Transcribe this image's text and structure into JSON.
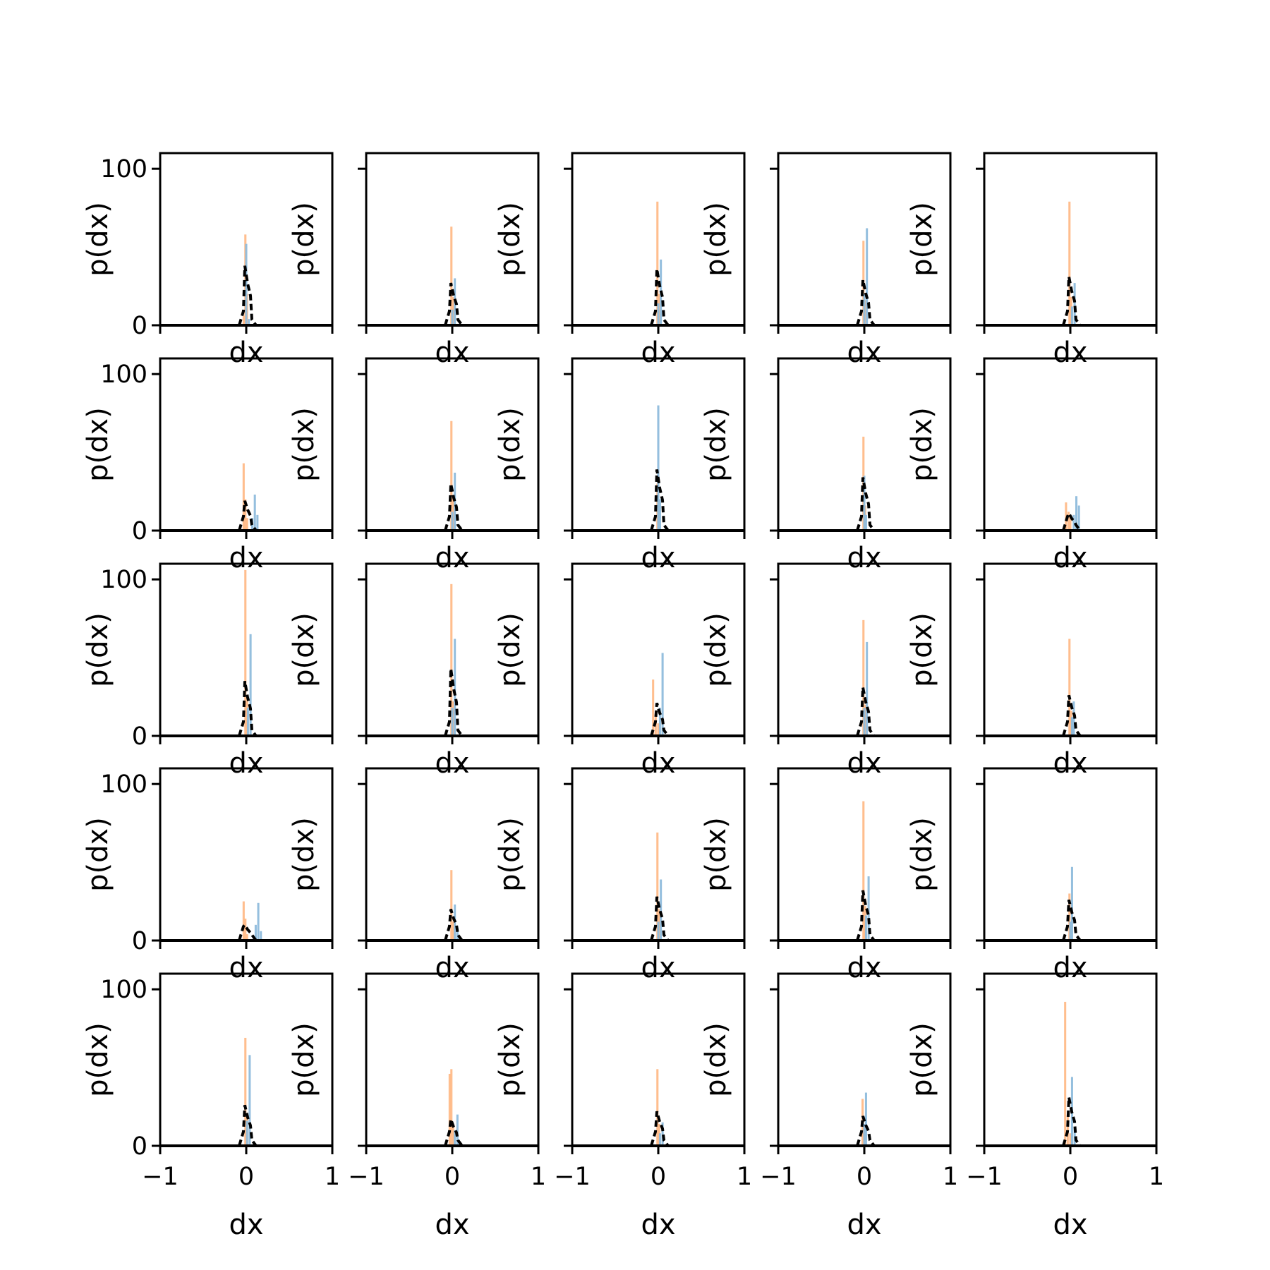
{
  "chart_data": {
    "type": "histogram-grid",
    "rows": 5,
    "cols": 5,
    "xlabel": "dx",
    "ylabel": "p(dx)",
    "xlim": [
      -1,
      1
    ],
    "ylim": [
      0,
      110
    ],
    "xticks": [
      -1,
      0,
      1
    ],
    "xtick_labels": [
      "−1",
      "0",
      "1"
    ],
    "yticks": [
      0,
      100
    ],
    "ytick_labels": [
      "0",
      "100"
    ],
    "colors": {
      "orange": "#ffbb88",
      "blue": "#8fbcdc",
      "line": "#000000"
    },
    "bin_width": 0.025,
    "panels": [
      {
        "row": 0,
        "col": 0,
        "orange": [
          [
            -0.01,
            58
          ],
          [
            0.01,
            20
          ],
          [
            -0.03,
            6
          ]
        ],
        "blue": [
          [
            0.0,
            52
          ],
          [
            0.03,
            4
          ]
        ],
        "peak": 38
      },
      {
        "row": 0,
        "col": 1,
        "orange": [
          [
            -0.01,
            63
          ],
          [
            0.01,
            18
          ]
        ],
        "blue": [
          [
            0.03,
            30
          ],
          [
            0.0,
            10
          ]
        ],
        "peak": 27
      },
      {
        "row": 0,
        "col": 2,
        "orange": [
          [
            -0.01,
            79
          ],
          [
            0.01,
            20
          ]
        ],
        "blue": [
          [
            0.03,
            42
          ],
          [
            0.0,
            14
          ]
        ],
        "peak": 36
      },
      {
        "row": 0,
        "col": 3,
        "orange": [
          [
            -0.01,
            54
          ],
          [
            0.01,
            16
          ]
        ],
        "blue": [
          [
            0.03,
            62
          ],
          [
            0.0,
            20
          ]
        ],
        "peak": 29
      },
      {
        "row": 0,
        "col": 4,
        "orange": [
          [
            -0.01,
            79
          ],
          [
            0.01,
            18
          ]
        ],
        "blue": [
          [
            0.05,
            27
          ],
          [
            0.02,
            12
          ]
        ],
        "peak": 31
      },
      {
        "row": 1,
        "col": 0,
        "orange": [
          [
            -0.03,
            43
          ],
          [
            -0.01,
            20
          ],
          [
            0.01,
            8
          ]
        ],
        "blue": [
          [
            0.1,
            23
          ],
          [
            0.13,
            10
          ],
          [
            0.07,
            8
          ]
        ],
        "peak": 19
      },
      {
        "row": 1,
        "col": 1,
        "orange": [
          [
            -0.01,
            70
          ],
          [
            0.01,
            22
          ]
        ],
        "blue": [
          [
            0.03,
            37
          ],
          [
            0.0,
            12
          ]
        ],
        "peak": 30
      },
      {
        "row": 1,
        "col": 2,
        "orange": [
          [
            -0.01,
            30
          ],
          [
            0.01,
            12
          ]
        ],
        "blue": [
          [
            0.0,
            80
          ],
          [
            0.02,
            20
          ]
        ],
        "peak": 39
      },
      {
        "row": 1,
        "col": 3,
        "orange": [
          [
            -0.01,
            60
          ],
          [
            0.01,
            16
          ]
        ],
        "blue": [
          [
            0.0,
            35
          ],
          [
            0.02,
            10
          ]
        ],
        "peak": 34
      },
      {
        "row": 1,
        "col": 4,
        "orange": [
          [
            -0.05,
            18
          ],
          [
            -0.02,
            12
          ],
          [
            0.0,
            8
          ]
        ],
        "blue": [
          [
            0.07,
            22
          ],
          [
            0.1,
            16
          ],
          [
            0.04,
            10
          ]
        ],
        "peak": 11
      },
      {
        "row": 2,
        "col": 0,
        "orange": [
          [
            -0.01,
            106
          ],
          [
            0.01,
            26
          ]
        ],
        "blue": [
          [
            0.05,
            65
          ],
          [
            0.02,
            18
          ]
        ],
        "peak": 35
      },
      {
        "row": 2,
        "col": 1,
        "orange": [
          [
            -0.01,
            97
          ],
          [
            0.01,
            22
          ]
        ],
        "blue": [
          [
            0.03,
            62
          ],
          [
            0.0,
            18
          ]
        ],
        "peak": 43
      },
      {
        "row": 2,
        "col": 2,
        "orange": [
          [
            -0.06,
            36
          ],
          [
            -0.03,
            14
          ],
          [
            0.0,
            8
          ]
        ],
        "blue": [
          [
            0.05,
            53
          ],
          [
            0.02,
            18
          ]
        ],
        "peak": 21
      },
      {
        "row": 2,
        "col": 3,
        "orange": [
          [
            -0.01,
            74
          ],
          [
            0.01,
            20
          ]
        ],
        "blue": [
          [
            0.03,
            60
          ],
          [
            0.0,
            18
          ]
        ],
        "peak": 31
      },
      {
        "row": 2,
        "col": 4,
        "orange": [
          [
            -0.01,
            62
          ],
          [
            0.01,
            16
          ]
        ],
        "blue": [
          [
            0.04,
            22
          ],
          [
            0.02,
            12
          ]
        ],
        "peak": 26
      },
      {
        "row": 3,
        "col": 0,
        "orange": [
          [
            -0.03,
            25
          ],
          [
            -0.01,
            14
          ],
          [
            0.01,
            4
          ]
        ],
        "blue": [
          [
            0.14,
            24
          ],
          [
            0.11,
            10
          ],
          [
            0.17,
            6
          ]
        ],
        "peak": 10
      },
      {
        "row": 3,
        "col": 1,
        "orange": [
          [
            -0.01,
            45
          ],
          [
            0.01,
            12
          ]
        ],
        "blue": [
          [
            0.03,
            23
          ],
          [
            0.06,
            8
          ]
        ],
        "peak": 20
      },
      {
        "row": 3,
        "col": 2,
        "orange": [
          [
            -0.01,
            69
          ],
          [
            0.01,
            20
          ]
        ],
        "blue": [
          [
            0.03,
            39
          ],
          [
            0.0,
            12
          ]
        ],
        "peak": 28
      },
      {
        "row": 3,
        "col": 3,
        "orange": [
          [
            -0.01,
            89
          ],
          [
            0.01,
            22
          ]
        ],
        "blue": [
          [
            0.05,
            41
          ],
          [
            0.02,
            16
          ]
        ],
        "peak": 32
      },
      {
        "row": 3,
        "col": 4,
        "orange": [
          [
            -0.01,
            30
          ],
          [
            0.01,
            10
          ]
        ],
        "blue": [
          [
            0.02,
            47
          ],
          [
            0.0,
            12
          ]
        ],
        "peak": 26
      },
      {
        "row": 4,
        "col": 0,
        "orange": [
          [
            -0.01,
            69
          ],
          [
            0.01,
            20
          ]
        ],
        "blue": [
          [
            0.04,
            58
          ],
          [
            0.01,
            16
          ]
        ],
        "peak": 26
      },
      {
        "row": 4,
        "col": 1,
        "orange": [
          [
            -0.03,
            46
          ],
          [
            -0.01,
            49
          ],
          [
            0.01,
            12
          ]
        ],
        "blue": [
          [
            0.06,
            20
          ],
          [
            0.03,
            10
          ]
        ],
        "peak": 17
      },
      {
        "row": 4,
        "col": 2,
        "orange": [
          [
            -0.01,
            49
          ],
          [
            0.01,
            14
          ]
        ],
        "blue": [
          [
            0.05,
            15
          ],
          [
            0.02,
            8
          ]
        ],
        "peak": 22
      },
      {
        "row": 4,
        "col": 3,
        "orange": [
          [
            -0.02,
            30
          ],
          [
            0.0,
            12
          ]
        ],
        "blue": [
          [
            0.02,
            34
          ],
          [
            0.0,
            14
          ]
        ],
        "peak": 19
      },
      {
        "row": 4,
        "col": 4,
        "orange": [
          [
            -0.06,
            92
          ],
          [
            -0.03,
            20
          ],
          [
            0.0,
            8
          ]
        ],
        "blue": [
          [
            0.02,
            44
          ],
          [
            0.05,
            12
          ]
        ],
        "peak": 31
      }
    ]
  }
}
